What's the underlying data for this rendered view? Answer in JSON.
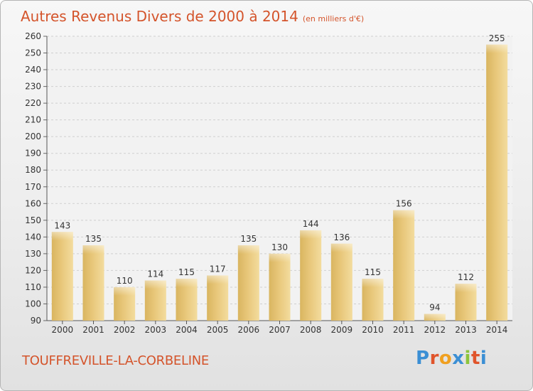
{
  "chart_data": {
    "type": "bar",
    "title": "Autres Revenus Divers de 2000 à 2014",
    "unit_note": "(en milliers d'€)",
    "categories": [
      "2000",
      "2001",
      "2002",
      "2003",
      "2004",
      "2005",
      "2006",
      "2007",
      "2008",
      "2009",
      "2010",
      "2011",
      "2012",
      "2013",
      "2014"
    ],
    "values": [
      143,
      135,
      110,
      114,
      115,
      117,
      135,
      130,
      144,
      136,
      115,
      156,
      94,
      112,
      255
    ],
    "ylim": [
      90,
      260
    ],
    "yticks": [
      90,
      100,
      110,
      120,
      130,
      140,
      150,
      160,
      170,
      180,
      190,
      200,
      210,
      220,
      230,
      240,
      250,
      260
    ],
    "grid": true,
    "bar_color": "#e8c77a",
    "title_color": "#d4542b"
  },
  "footer": {
    "city": "TOUFFREVILLE-LA-CORBELINE",
    "logo": [
      "P",
      "r",
      "o",
      "x",
      "i",
      "t",
      "i"
    ],
    "logo_colors": [
      "#3b8fd4",
      "#e0542b",
      "#f0a020",
      "#3b8fd4",
      "#8cc43c",
      "#e0542b",
      "#3b8fd4"
    ]
  }
}
